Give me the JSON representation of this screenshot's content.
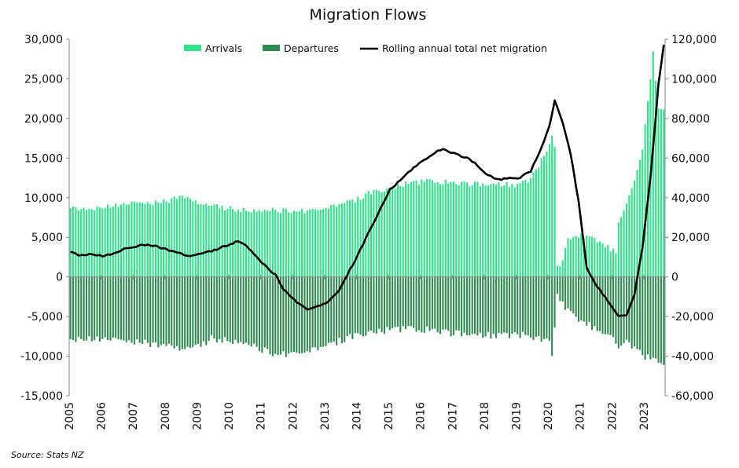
{
  "chart_data": {
    "type": "bar",
    "title": "Migration Flows",
    "source": "Source: Stats NZ",
    "colors": {
      "arrivals": "#2fe38a",
      "departures": "#2e8b50",
      "net": "#000000"
    },
    "left_axis": {
      "ylim": [
        -15000,
        30000
      ],
      "ticks": [
        "-15,000",
        "-10,000",
        "-5,000",
        "0",
        "5,000",
        "10,000",
        "15,000",
        "20,000",
        "25,000",
        "30,000"
      ],
      "tick_values": [
        -15000,
        -10000,
        -5000,
        0,
        5000,
        10000,
        15000,
        20000,
        25000,
        30000
      ]
    },
    "right_axis": {
      "ylim": [
        -60000,
        120000
      ],
      "ticks": [
        "-60,000",
        "-40,000",
        "-20,000",
        "0",
        "20,000",
        "40,000",
        "60,000",
        "80,000",
        "100,000",
        "120,000"
      ],
      "tick_values": [
        -60000,
        -40000,
        -20000,
        0,
        20000,
        40000,
        60000,
        80000,
        100000,
        120000
      ]
    },
    "x_labels": [
      "2005",
      "2006",
      "2007",
      "2008",
      "2009",
      "2010",
      "2011",
      "2012",
      "2013",
      "2014",
      "2015",
      "2016",
      "2017",
      "2018",
      "2019",
      "2020",
      "2021",
      "2022",
      "2023"
    ],
    "x_start": "2005-01",
    "x_end": "2023-08",
    "grid": false,
    "legend_position": "top",
    "series": [
      {
        "name": "Arrivals",
        "axis": "left",
        "anchors": [
          [
            "2005-01",
            8700
          ],
          [
            "2005-06",
            8600
          ],
          [
            "2006-01",
            8800
          ],
          [
            "2006-06",
            9000
          ],
          [
            "2007-01",
            9300
          ],
          [
            "2007-06",
            9400
          ],
          [
            "2008-01",
            9500
          ],
          [
            "2008-06",
            10300
          ],
          [
            "2009-01",
            9400
          ],
          [
            "2009-06",
            9000
          ],
          [
            "2010-01",
            8600
          ],
          [
            "2010-06",
            8400
          ],
          [
            "2011-01",
            8300
          ],
          [
            "2011-06",
            8400
          ],
          [
            "2012-01",
            8300
          ],
          [
            "2012-06",
            8400
          ],
          [
            "2013-01",
            8700
          ],
          [
            "2013-06",
            9100
          ],
          [
            "2014-01",
            9800
          ],
          [
            "2014-06",
            10700
          ],
          [
            "2015-01",
            11200
          ],
          [
            "2015-06",
            11700
          ],
          [
            "2016-01",
            12000
          ],
          [
            "2016-06",
            12100
          ],
          [
            "2017-01",
            11900
          ],
          [
            "2017-06",
            11800
          ],
          [
            "2018-01",
            11600
          ],
          [
            "2018-06",
            11700
          ],
          [
            "2019-01",
            11600
          ],
          [
            "2019-06",
            12400
          ],
          [
            "2019-12",
            15800
          ],
          [
            "2020-02",
            18200
          ],
          [
            "2020-03",
            16400
          ],
          [
            "2020-04",
            1200
          ],
          [
            "2020-06",
            2000
          ],
          [
            "2020-08",
            4800
          ],
          [
            "2021-01",
            5200
          ],
          [
            "2021-06",
            5000
          ],
          [
            "2021-09",
            4200
          ],
          [
            "2021-12",
            3500
          ],
          [
            "2022-02",
            3200
          ],
          [
            "2022-03",
            7000
          ],
          [
            "2022-06",
            9500
          ],
          [
            "2022-09",
            12500
          ],
          [
            "2022-12",
            16000
          ],
          [
            "2023-02",
            22000
          ],
          [
            "2023-04",
            28300
          ],
          [
            "2023-06",
            21000
          ],
          [
            "2023-08",
            21500
          ]
        ]
      },
      {
        "name": "Departures",
        "axis": "left",
        "anchors": [
          [
            "2005-01",
            -7800
          ],
          [
            "2006-01",
            -7900
          ],
          [
            "2007-01",
            -8100
          ],
          [
            "2007-06",
            -8400
          ],
          [
            "2008-01",
            -8600
          ],
          [
            "2008-06",
            -9000
          ],
          [
            "2009-01",
            -8800
          ],
          [
            "2009-06",
            -7800
          ],
          [
            "2010-01",
            -8100
          ],
          [
            "2010-06",
            -8400
          ],
          [
            "2011-01",
            -9200
          ],
          [
            "2011-06",
            -9800
          ],
          [
            "2012-01",
            -9600
          ],
          [
            "2012-06",
            -9400
          ],
          [
            "2013-01",
            -8800
          ],
          [
            "2013-06",
            -8100
          ],
          [
            "2014-01",
            -7300
          ],
          [
            "2014-06",
            -6900
          ],
          [
            "2015-01",
            -6700
          ],
          [
            "2015-06",
            -6600
          ],
          [
            "2016-01",
            -6600
          ],
          [
            "2016-06",
            -6700
          ],
          [
            "2017-01",
            -7100
          ],
          [
            "2017-06",
            -7300
          ],
          [
            "2018-01",
            -7400
          ],
          [
            "2018-06",
            -7300
          ],
          [
            "2019-01",
            -7300
          ],
          [
            "2019-06",
            -7400
          ],
          [
            "2020-01",
            -8200
          ],
          [
            "2020-02",
            -9800
          ],
          [
            "2020-03",
            -6500
          ],
          [
            "2020-04",
            -2300
          ],
          [
            "2020-06",
            -3500
          ],
          [
            "2021-01",
            -5500
          ],
          [
            "2021-06",
            -6500
          ],
          [
            "2021-09",
            -6800
          ],
          [
            "2022-01",
            -7200
          ],
          [
            "2022-03",
            -8800
          ],
          [
            "2022-06",
            -8300
          ],
          [
            "2022-09",
            -9000
          ],
          [
            "2022-12",
            -9800
          ],
          [
            "2023-03",
            -10400
          ],
          [
            "2023-06",
            -10700
          ],
          [
            "2023-08",
            -11200
          ]
        ]
      },
      {
        "name": "Rolling annual total net migration",
        "axis": "right",
        "type": "line",
        "anchors": [
          [
            "2005-01",
            13000
          ],
          [
            "2005-04",
            11000
          ],
          [
            "2005-09",
            11500
          ],
          [
            "2006-01",
            10500
          ],
          [
            "2006-06",
            12000
          ],
          [
            "2006-09",
            14000
          ],
          [
            "2007-01",
            15000
          ],
          [
            "2007-04",
            16500
          ],
          [
            "2007-09",
            15500
          ],
          [
            "2008-01",
            14000
          ],
          [
            "2008-06",
            12000
          ],
          [
            "2008-09",
            10500
          ],
          [
            "2009-01",
            11500
          ],
          [
            "2009-06",
            13000
          ],
          [
            "2009-12",
            16000
          ],
          [
            "2010-04",
            18000
          ],
          [
            "2010-06",
            17000
          ],
          [
            "2010-09",
            13000
          ],
          [
            "2011-01",
            7000
          ],
          [
            "2011-06",
            1000
          ],
          [
            "2011-09",
            -6000
          ],
          [
            "2012-01",
            -11500
          ],
          [
            "2012-06",
            -16500
          ],
          [
            "2012-09",
            -15000
          ],
          [
            "2013-01",
            -13500
          ],
          [
            "2013-06",
            -7000
          ],
          [
            "2013-09",
            1000
          ],
          [
            "2014-01",
            11000
          ],
          [
            "2014-06",
            25000
          ],
          [
            "2014-09",
            33000
          ],
          [
            "2015-01",
            44000
          ],
          [
            "2015-06",
            50000
          ],
          [
            "2015-09",
            54000
          ],
          [
            "2016-01",
            58000
          ],
          [
            "2016-06",
            63000
          ],
          [
            "2016-09",
            64500
          ],
          [
            "2017-01",
            62500
          ],
          [
            "2017-06",
            60000
          ],
          [
            "2017-09",
            57500
          ],
          [
            "2018-01",
            52000
          ],
          [
            "2018-06",
            49000
          ],
          [
            "2018-09",
            50000
          ],
          [
            "2019-01",
            49500
          ],
          [
            "2019-06",
            53500
          ],
          [
            "2019-09",
            62000
          ],
          [
            "2020-01",
            76000
          ],
          [
            "2020-03",
            89000
          ],
          [
            "2020-06",
            78000
          ],
          [
            "2020-09",
            62000
          ],
          [
            "2020-12",
            38000
          ],
          [
            "2021-03",
            5000
          ],
          [
            "2021-06",
            -3000
          ],
          [
            "2021-09",
            -8500
          ],
          [
            "2021-12",
            -14000
          ],
          [
            "2022-03",
            -19500
          ],
          [
            "2022-06",
            -19000
          ],
          [
            "2022-09",
            -9000
          ],
          [
            "2022-12",
            15000
          ],
          [
            "2023-03",
            50000
          ],
          [
            "2023-06",
            97000
          ],
          [
            "2023-08",
            117000
          ]
        ]
      }
    ]
  }
}
